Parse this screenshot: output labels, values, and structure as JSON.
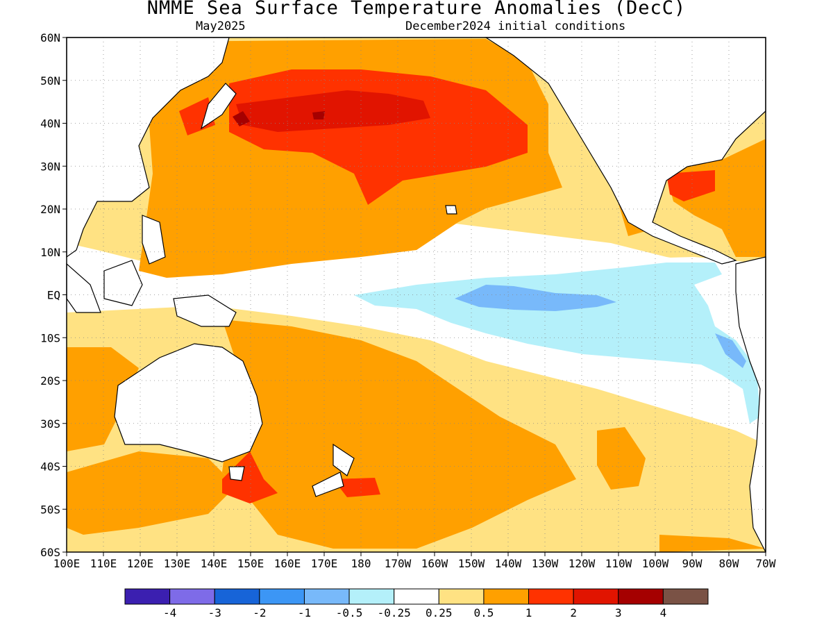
{
  "title": "NMME Sea Surface Temperature Anomalies (DecC)",
  "target_month": "May2025",
  "init_conditions": "December2024 initial conditions",
  "lat_labels": [
    "60N",
    "50N",
    "40N",
    "30N",
    "20N",
    "10N",
    "EQ",
    "10S",
    "20S",
    "30S",
    "40S",
    "50S",
    "60S"
  ],
  "lon_labels": [
    "100E",
    "110E",
    "120E",
    "130E",
    "140E",
    "150E",
    "160E",
    "170E",
    "180",
    "170W",
    "160W",
    "150W",
    "140W",
    "130W",
    "120W",
    "110W",
    "100W",
    "90W",
    "80W",
    "70W"
  ],
  "colorbar": {
    "colors": [
      "#3b1fb0",
      "#7e6be8",
      "#1764d8",
      "#3c96f5",
      "#78b9fa",
      "#b4f0fa",
      "#ffffff",
      "#ffe283",
      "#ffa000",
      "#ff3200",
      "#e11400",
      "#a50000",
      "#7a5245"
    ],
    "tick_labels": [
      "-4",
      "-3",
      "-2",
      "-1",
      "-0.5",
      "-0.25",
      "0.25",
      "0.5",
      "1",
      "2",
      "3",
      "4"
    ]
  },
  "colors": {
    "land": "#ffffff",
    "coast": "#000000",
    "grid": "#888888"
  }
}
